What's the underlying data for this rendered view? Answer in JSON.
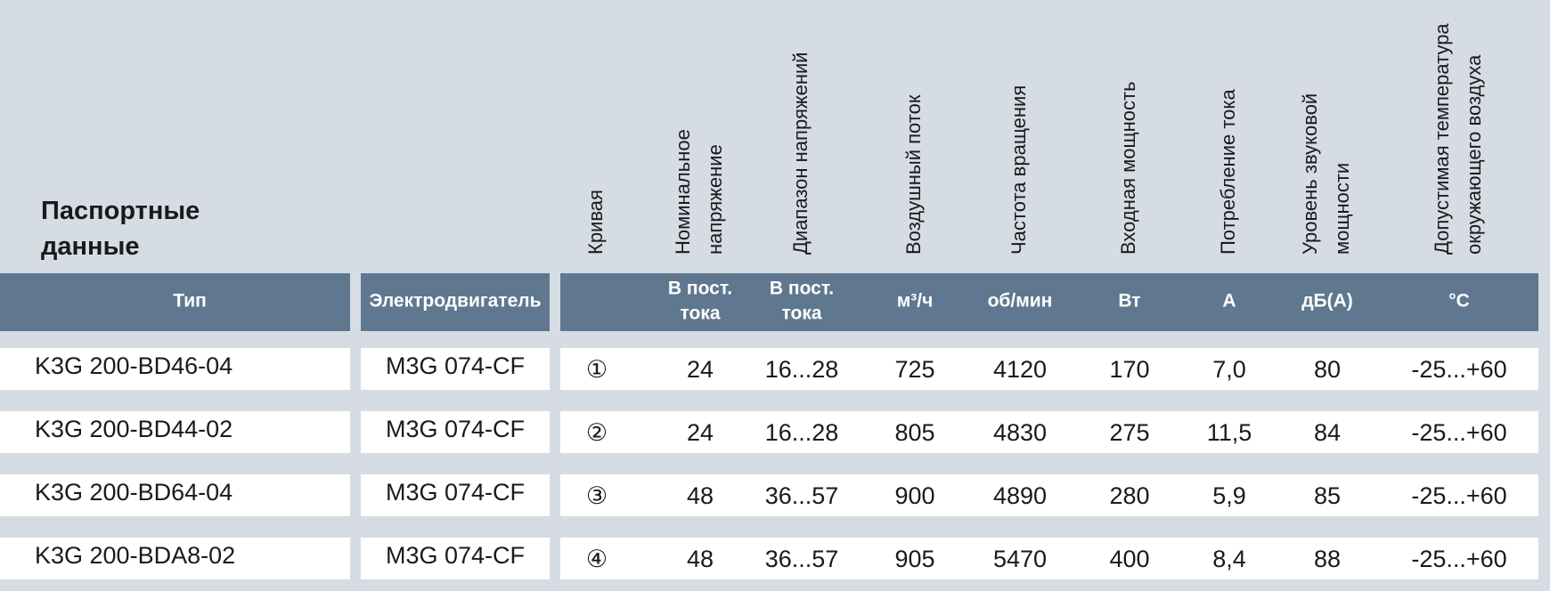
{
  "title": [
    "Паспортные",
    "данные"
  ],
  "columns": [
    {
      "unit": [
        "Тип"
      ]
    },
    {
      "unit": [
        "Электродвигатель"
      ]
    },
    {
      "label": [
        "Кривая"
      ]
    },
    {
      "label": [
        "Номинальное",
        "напряжение"
      ],
      "unit": [
        "В пост.",
        "тока"
      ]
    },
    {
      "label": [
        "Диапазон напряжений"
      ],
      "unit": [
        "В пост.",
        "тока"
      ]
    },
    {
      "label": [
        "Воздушный поток"
      ],
      "unit": [
        "м³/ч"
      ]
    },
    {
      "label": [
        "Частота вращения"
      ],
      "unit": [
        "об/мин"
      ]
    },
    {
      "label": [
        "Входная мощность"
      ],
      "unit": [
        "Вт"
      ]
    },
    {
      "label": [
        "Потребление тока"
      ],
      "unit": [
        "A"
      ]
    },
    {
      "label": [
        "Уровень звуковой",
        "мощности"
      ],
      "unit": [
        "дБ(А)"
      ]
    },
    {
      "label": [
        "Допустимая температура",
        "окружающего воздуха"
      ],
      "unit": [
        "°C"
      ]
    }
  ],
  "rows": [
    [
      "K3G 200-BD46-04",
      "M3G 074-CF",
      "①",
      "24",
      "16...28",
      "725",
      "4120",
      "170",
      "7,0",
      "80",
      "-25...+60"
    ],
    [
      "K3G 200-BD44-02",
      "M3G 074-CF",
      "②",
      "24",
      "16...28",
      "805",
      "4830",
      "275",
      "11,5",
      "84",
      "-25...+60"
    ],
    [
      "K3G 200-BD64-04",
      "M3G 074-CF",
      "③",
      "48",
      "36...57",
      "900",
      "4890",
      "280",
      "5,9",
      "85",
      "-25...+60"
    ],
    [
      "K3G 200-BDA8-02",
      "M3G 074-CF",
      "④",
      "48",
      "36...57",
      "905",
      "5470",
      "400",
      "8,4",
      "88",
      "-25...+60"
    ]
  ]
}
